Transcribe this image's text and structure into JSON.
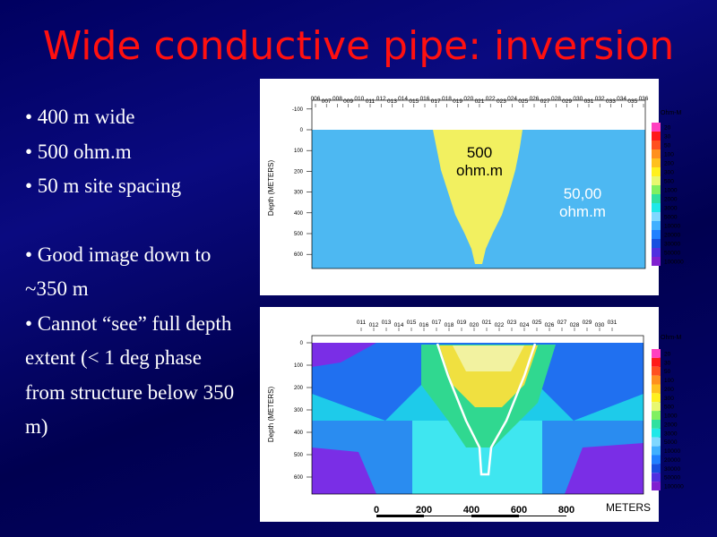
{
  "title": "Wide conductive pipe: inversion",
  "bullets": [
    "• 400 m wide",
    "• 500 ohm.m",
    "• 50 m site spacing",
    "• Good image down to ~350 m",
    "• Cannot “see” full depth extent (< 1 deg phase from structure below 350 m)"
  ],
  "panels": [
    {
      "stations": [
        "006",
        "007",
        "008",
        "009",
        "010",
        "011",
        "012",
        "013",
        "014",
        "015",
        "016",
        "017",
        "018",
        "019",
        "020",
        "021",
        "022",
        "023",
        "024",
        "025",
        "026",
        "027",
        "028",
        "029",
        "030",
        "031",
        "032",
        "033",
        "034",
        "035",
        "036"
      ],
      "depth_label": "Depth (METERS)",
      "depth_ticks": [
        -100,
        0,
        100,
        200,
        300,
        400,
        500,
        600
      ],
      "legend_title": "Ohm-M",
      "legend": [
        20,
        30,
        50,
        100,
        200,
        300,
        500,
        1000,
        2000,
        3000,
        5000,
        10000,
        20000,
        30000,
        50000,
        100000
      ],
      "annotations": [
        "500",
        "ohm.m",
        "50,00",
        "ohm.m"
      ]
    },
    {
      "stations": [
        "011",
        "012",
        "013",
        "014",
        "015",
        "016",
        "017",
        "018",
        "019",
        "020",
        "021",
        "022",
        "023",
        "024",
        "025",
        "026",
        "027",
        "028",
        "029",
        "030",
        "031"
      ],
      "depth_label": "Depth (METERS)",
      "depth_ticks": [
        0,
        100,
        200,
        300,
        400,
        500,
        600
      ],
      "legend_title": "Ohm-M",
      "legend": [
        20,
        30,
        50,
        100,
        200,
        300,
        500,
        1000,
        2000,
        3000,
        5000,
        10000,
        20000,
        30000,
        50000,
        100000
      ],
      "scale": [
        0,
        200,
        400,
        600,
        800
      ],
      "scale_unit": "METERS"
    }
  ]
}
